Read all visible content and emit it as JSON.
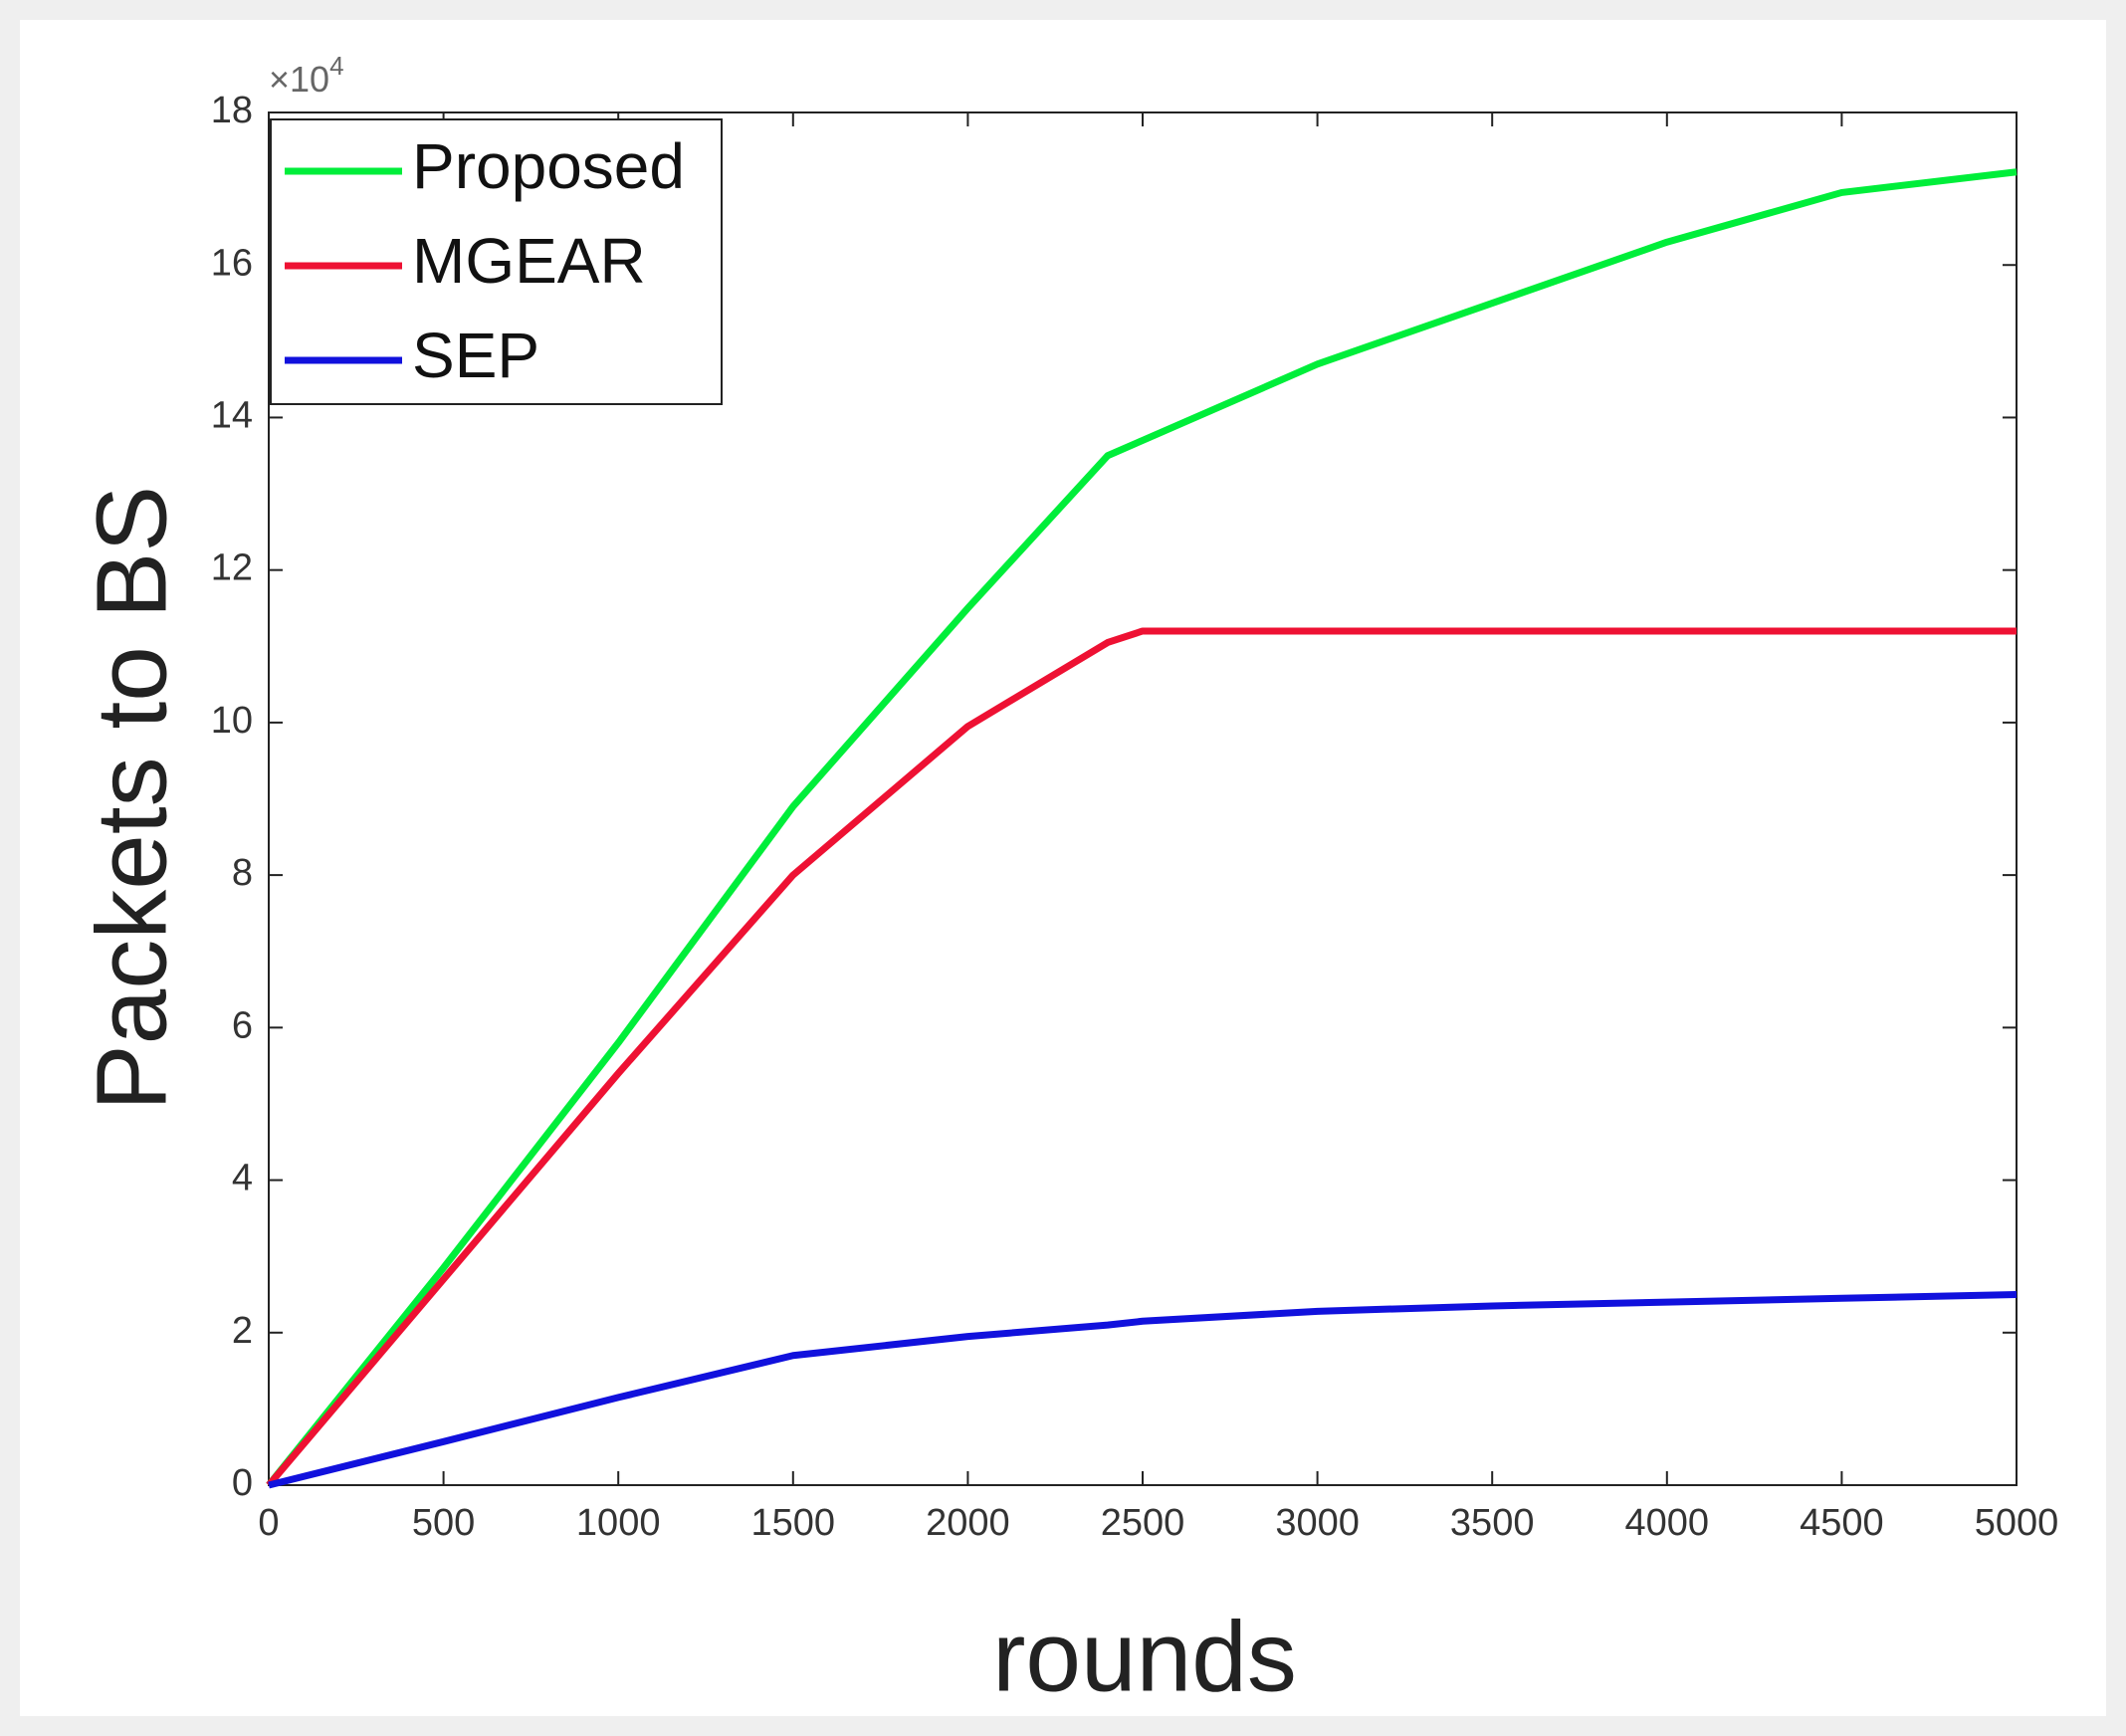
{
  "chart_data": {
    "type": "line",
    "xlabel": "rounds",
    "ylabel": "Packets to BS",
    "y_multiplier_base": "×10",
    "y_multiplier_exponent": "4",
    "x": [
      0,
      500,
      1000,
      1500,
      2000,
      2400,
      2500,
      3000,
      3500,
      4000,
      4500,
      5000
    ],
    "series": [
      {
        "name": "Proposed",
        "color": "#00ee3a",
        "values": [
          0,
          2.85,
          5.8,
          8.9,
          11.5,
          13.5,
          13.7,
          14.7,
          15.5,
          16.3,
          16.95,
          17.22
        ]
      },
      {
        "name": "MGEAR",
        "color": "#ee1133",
        "values": [
          0,
          2.7,
          5.4,
          8.0,
          9.95,
          11.05,
          11.2,
          11.2,
          11.2,
          11.2,
          11.2,
          11.2
        ]
      },
      {
        "name": "SEP",
        "color": "#1111dd",
        "values": [
          0,
          0.57,
          1.15,
          1.7,
          1.95,
          2.1,
          2.15,
          2.28,
          2.35,
          2.4,
          2.45,
          2.5
        ]
      }
    ],
    "xlim": [
      0,
      5000
    ],
    "xticks": [
      0,
      500,
      1000,
      1500,
      2000,
      2500,
      3000,
      3500,
      4000,
      4500,
      5000
    ],
    "ylim": [
      0,
      18
    ],
    "yticks": [
      0,
      2,
      4,
      6,
      8,
      10,
      12,
      14,
      16,
      18
    ],
    "legend": "upper-left"
  }
}
